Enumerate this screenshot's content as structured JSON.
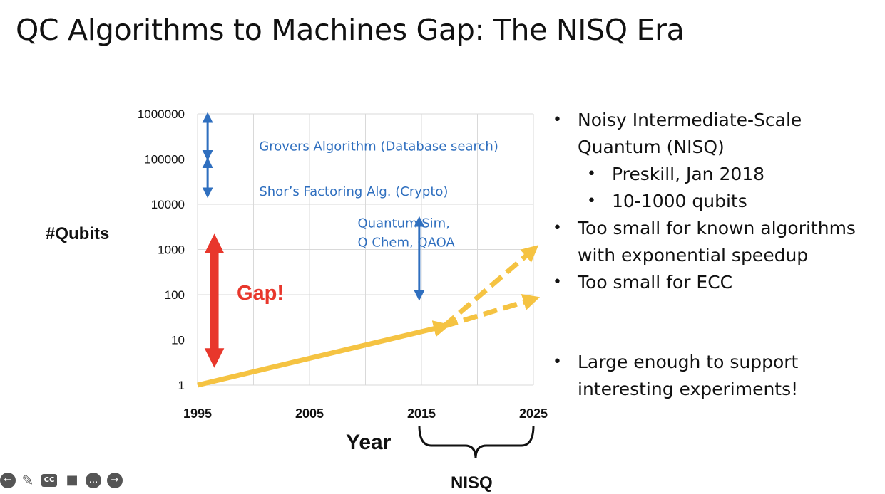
{
  "title": "QC Algorithms to Machines Gap: The NISQ Era",
  "chart_data": {
    "type": "line",
    "title": "",
    "xlabel": "Year",
    "ylabel": "#Qubits",
    "x_ticks": [
      "1995",
      "2005",
      "2015",
      "2025"
    ],
    "xlim": [
      1995,
      2025
    ],
    "y_scale": "log",
    "y_ticks": [
      "1",
      "10",
      "100",
      "1000",
      "10000",
      "100000",
      "1000000"
    ],
    "ylim": [
      1,
      1000000
    ],
    "grid": true,
    "series": [
      {
        "style": "solid",
        "color": "#f5c342",
        "x": [
          1995,
          2017
        ],
        "y": [
          1,
          20
        ]
      },
      {
        "style": "dashed",
        "color": "#f5c342",
        "x": [
          2017,
          2025
        ],
        "y": [
          20,
          1000
        ]
      },
      {
        "style": "dashed",
        "color": "#f5c342",
        "x": [
          2017,
          2025
        ],
        "y": [
          20,
          80
        ]
      }
    ],
    "annotations": [
      {
        "text": "Grovers Algorithm (Database search)",
        "color": "#2f6fbf",
        "x": 2000.5,
        "y": 200000,
        "arrow_x": 1995.9,
        "arrow_y": [
          1000000,
          100000
        ]
      },
      {
        "text": "Shor’s Factoring Alg. (Crypto)",
        "color": "#2f6fbf",
        "x": 2000.5,
        "y": 20000,
        "arrow_x": 1995.9,
        "arrow_y": [
          100000,
          15000
        ]
      },
      {
        "text": "Quantum Sim,",
        "color": "#2f6fbf",
        "x": 2009.3,
        "y": 4000,
        "arrow_x": 2014.8,
        "arrow_y": [
          5000,
          80
        ]
      },
      {
        "text": "Q Chem, QAOA",
        "color": "#2f6fbf",
        "x": 2009.3,
        "y": 1500
      },
      {
        "text": "Gap!",
        "color": "#e8372c",
        "x": 1998.5,
        "y": 100,
        "arrow_x": 1996.5,
        "arrow_y": [
          5000,
          1
        ]
      }
    ],
    "bracket_label": "NISQ",
    "bracket_range": [
      2015,
      2025
    ]
  },
  "bullets": [
    {
      "text": "Noisy Intermediate-Scale",
      "level": 1
    },
    {
      "text": "Quantum (NISQ)",
      "level": 1,
      "continuation": true
    },
    {
      "text": "Preskill, Jan 2018",
      "level": 2
    },
    {
      "text": "10-1000 qubits",
      "level": 2
    },
    {
      "text": "Too small for known algorithms",
      "level": 1
    },
    {
      "text": "with exponential speedup",
      "level": 1,
      "continuation": true
    },
    {
      "text": "Too small for ECC",
      "level": 1
    },
    {
      "text": "Large enough to support",
      "level": 1,
      "gap_before": true
    },
    {
      "text": "interesting experiments!",
      "level": 1,
      "continuation": true
    }
  ],
  "toolbar": {
    "icons": [
      "back-icon",
      "pen-icon",
      "cc-icon",
      "camera-off-icon",
      "more-icon",
      "forward-icon"
    ],
    "cc_label": "CC"
  }
}
